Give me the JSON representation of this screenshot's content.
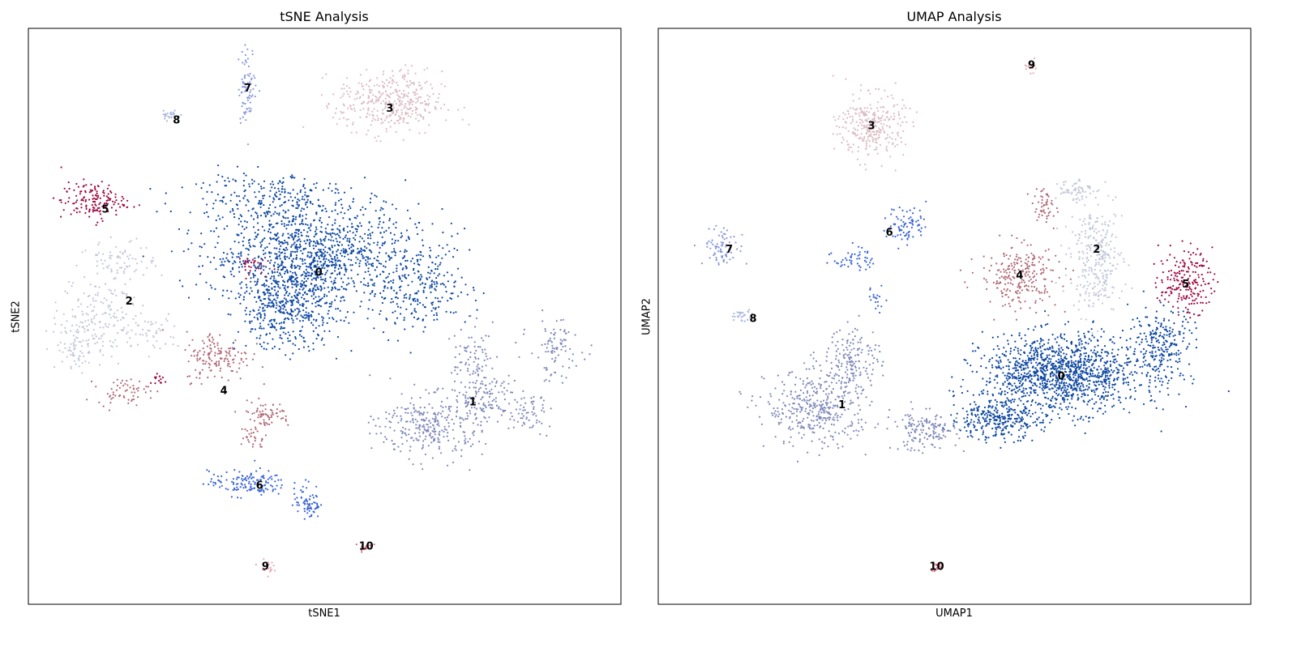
{
  "chart_data": [
    {
      "type": "scatter",
      "title": "tSNE Analysis",
      "xlabel": "tSNE1",
      "ylabel": "tSNE2",
      "xlim": [
        0,
        100
      ],
      "ylim": [
        0,
        100
      ],
      "grid": false,
      "legend": "on data",
      "series": [
        {
          "name": "0",
          "color": "#0d47a1",
          "label_at": [
            49,
            57.5
          ],
          "blobs": [
            [
              48,
              61,
              16,
              8,
              1100
            ],
            [
              44,
              52,
              8,
              7,
              500
            ],
            [
              66,
              55,
              8,
              7,
              250
            ],
            [
              40,
              71,
              13,
              4,
              200
            ]
          ]
        },
        {
          "name": "1",
          "color": "#7f88b8",
          "label_at": [
            75,
            35
          ],
          "blobs": [
            [
              68,
              31,
              8,
              5,
              300
            ],
            [
              77,
              36,
              5,
              4,
              120
            ],
            [
              89,
              44,
              4,
              5,
              90
            ],
            [
              84,
              33,
              4,
              3,
              60
            ],
            [
              75,
              43,
              3,
              5,
              80
            ]
          ]
        },
        {
          "name": "2",
          "color": "#c2c6d9",
          "label_at": [
            17,
            52.5
          ],
          "blobs": [
            [
              12,
              50,
              6,
              7,
              200
            ],
            [
              16,
              60,
              5,
              3,
              70
            ],
            [
              8,
              44,
              3,
              3,
              50
            ],
            [
              21,
              47,
              4,
              3,
              40
            ]
          ]
        },
        {
          "name": "3",
          "color": "#dbbcc3",
          "label_at": [
            61,
            86
          ],
          "blobs": [
            [
              61,
              87,
              8,
              5,
              400
            ]
          ]
        },
        {
          "name": "4",
          "color": "#b06b78",
          "label_at": [
            33,
            37
          ],
          "blobs": [
            [
              32,
              43,
              5,
              4,
              150
            ],
            [
              40,
              33,
              4,
              2,
              70
            ],
            [
              16,
              37,
              4,
              2,
              60
            ],
            [
              38,
              29,
              2,
              2,
              30
            ]
          ]
        },
        {
          "name": "5",
          "color": "#9c0a42",
          "label_at": [
            13,
            68.5
          ],
          "blobs": [
            [
              11,
              70,
              5,
              3,
              150
            ],
            [
              37,
              59,
              2.5,
              1.5,
              30
            ],
            [
              22,
              39,
              1.2,
              1.2,
              15
            ]
          ]
        },
        {
          "name": "6",
          "color": "#3a64d8",
          "label_at": [
            39,
            20.5
          ],
          "blobs": [
            [
              37,
              21,
              6,
              2,
              140
            ],
            [
              47,
              18,
              2,
              3,
              50
            ],
            [
              48,
              17,
              1.5,
              1.5,
              20
            ]
          ]
        },
        {
          "name": "7",
          "color": "#8898dc",
          "label_at": [
            37,
            89.5
          ],
          "blobs": [
            [
              37,
              90,
              1.4,
              6,
              80
            ]
          ]
        },
        {
          "name": "8",
          "color": "#aab6e0",
          "label_at": [
            25,
            84
          ],
          "blobs": [
            [
              24,
              85,
              1.5,
              1,
              25
            ]
          ]
        },
        {
          "name": "9",
          "color": "#e4aab6",
          "label_at": [
            40,
            6.5
          ],
          "blobs": [
            [
              40,
              6.5,
              1.2,
              1,
              20
            ]
          ]
        },
        {
          "name": "10",
          "color": "#d66a85",
          "label_at": [
            57,
            10
          ],
          "blobs": [
            [
              57,
              10,
              1,
              0.8,
              15
            ]
          ]
        }
      ]
    },
    {
      "type": "scatter",
      "title": "UMAP Analysis",
      "xlabel": "UMAP1",
      "ylabel": "UMAP2",
      "xlim": [
        0,
        100
      ],
      "ylim": [
        0,
        100
      ],
      "grid": false,
      "legend": "on data",
      "series": [
        {
          "name": "0",
          "color": "#0d47a1",
          "label_at": [
            68,
            39.5
          ],
          "blobs": [
            [
              68,
              40,
              12,
              6,
              1300
            ],
            [
              57,
              32,
              7,
              3,
              300
            ],
            [
              85,
              45,
              5,
              6,
              250
            ]
          ]
        },
        {
          "name": "1",
          "color": "#7f88b8",
          "label_at": [
            31,
            34.5
          ],
          "blobs": [
            [
              27,
              34,
              8,
              6,
              400
            ],
            [
              45,
              30,
              5,
              3,
              150
            ],
            [
              33,
              43,
              4,
              5,
              150
            ]
          ]
        },
        {
          "name": "2",
          "color": "#c2c6d9",
          "label_at": [
            74,
            61.5
          ],
          "blobs": [
            [
              74,
              60,
              4,
              8,
              300
            ],
            [
              70,
              72,
              3,
              2,
              60
            ]
          ]
        },
        {
          "name": "3",
          "color": "#dbbcc3",
          "label_at": [
            36,
            83
          ],
          "blobs": [
            [
              36,
              83,
              5,
              5,
              300
            ]
          ]
        },
        {
          "name": "4",
          "color": "#b06b78",
          "label_at": [
            61,
            57
          ],
          "blobs": [
            [
              61,
              57,
              6,
              5,
              250
            ],
            [
              65,
              69,
              2,
              3,
              50
            ]
          ]
        },
        {
          "name": "5",
          "color": "#9c0a42",
          "label_at": [
            89,
            55.5
          ],
          "blobs": [
            [
              89,
              56,
              4,
              5,
              200
            ]
          ]
        },
        {
          "name": "6",
          "color": "#3a64d8",
          "label_at": [
            39,
            64.5
          ],
          "blobs": [
            [
              42,
              66,
              3,
              3,
              80
            ],
            [
              33,
              60,
              3,
              2,
              50
            ],
            [
              37,
              53,
              1.5,
              2,
              20
            ]
          ]
        },
        {
          "name": "7",
          "color": "#8898dc",
          "label_at": [
            12,
            61.5
          ],
          "blobs": [
            [
              11,
              62,
              3,
              3,
              80
            ]
          ]
        },
        {
          "name": "8",
          "color": "#aab6e0",
          "label_at": [
            16,
            49.5
          ],
          "blobs": [
            [
              14,
              50,
              2,
              1,
              30
            ]
          ]
        },
        {
          "name": "9",
          "color": "#e4aab6",
          "label_at": [
            63,
            93.5
          ],
          "blobs": [
            [
              63,
              93.5,
              1,
              1,
              20
            ]
          ]
        },
        {
          "name": "10",
          "color": "#d66a85",
          "label_at": [
            47,
            6.5
          ],
          "blobs": [
            [
              47,
              6.5,
              1,
              1,
              20
            ]
          ]
        }
      ]
    }
  ]
}
